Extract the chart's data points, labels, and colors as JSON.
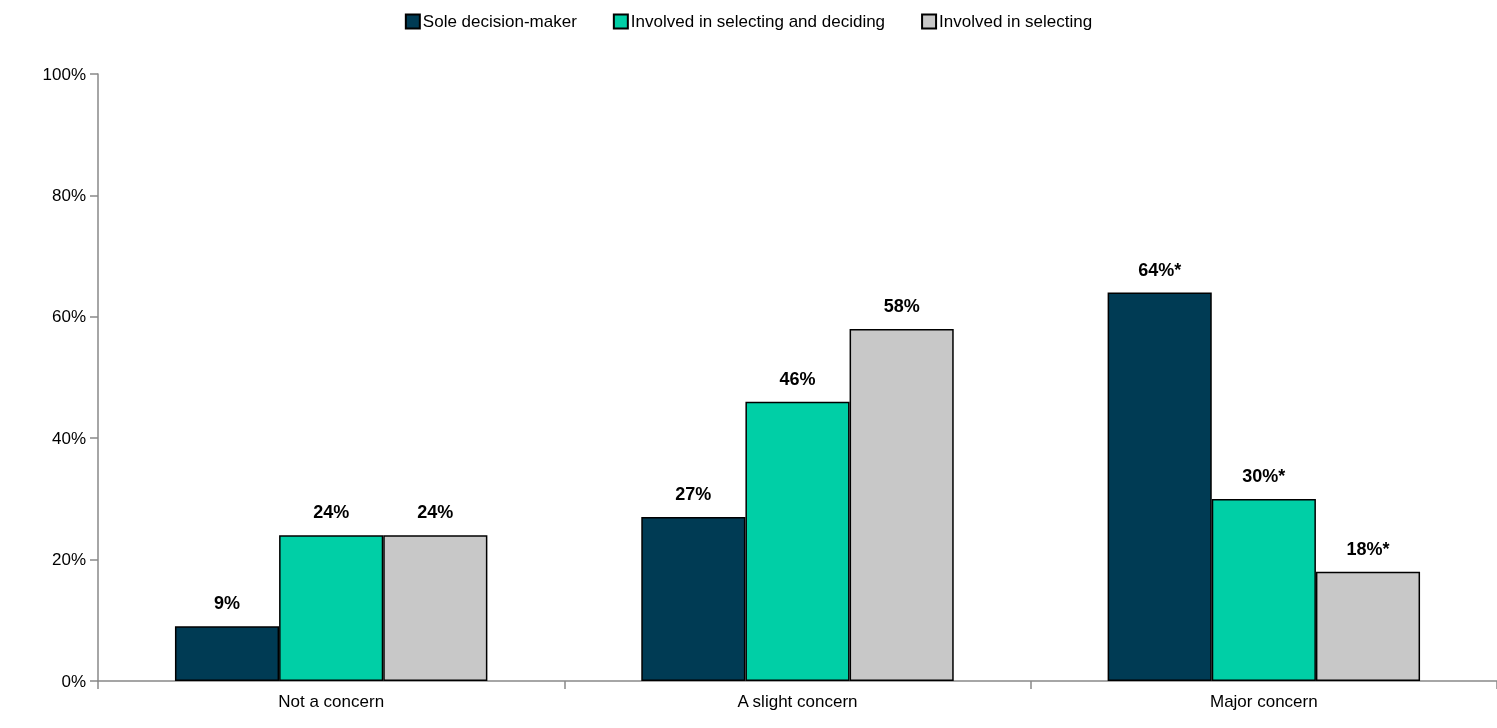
{
  "chart_data": {
    "type": "bar",
    "categories": [
      "Not a concern",
      "A slight concern",
      "Major concern"
    ],
    "series": [
      {
        "name": "Sole decision-maker",
        "color": "#003b54",
        "values": [
          9,
          27,
          64
        ],
        "value_labels": [
          "9%",
          "27%",
          "64%*"
        ]
      },
      {
        "name": "Involved in selecting and deciding",
        "color": "#00cfa6",
        "values": [
          24,
          46,
          30
        ],
        "value_labels": [
          "24%",
          "46%",
          "30%*"
        ]
      },
      {
        "name": "Involved in selecting",
        "color": "#c8c8c8",
        "values": [
          24,
          58,
          18
        ],
        "value_labels": [
          "24%",
          "58%",
          "18%*"
        ]
      }
    ],
    "ylim": [
      0,
      100
    ],
    "yticks": [
      {
        "value": 0,
        "label": "0%"
      },
      {
        "value": 20,
        "label": "20%"
      },
      {
        "value": 40,
        "label": "40%"
      },
      {
        "value": 60,
        "label": "60%"
      },
      {
        "value": 80,
        "label": "80%"
      },
      {
        "value": 100,
        "label": "100%"
      }
    ],
    "grid": false,
    "legend": "top"
  }
}
